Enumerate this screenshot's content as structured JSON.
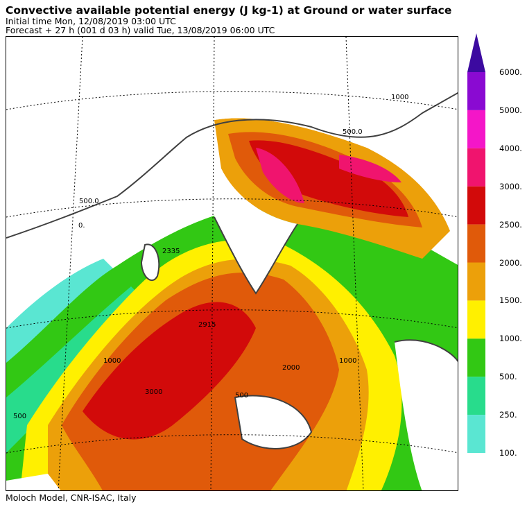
{
  "title": "Convective available potential energy (J kg-1) at Ground or water surface",
  "initial_time": "Initial time  Mon, 12/08/2019  03:00 UTC",
  "forecast": "Forecast  +  27 h  (001 d 03 h)  valid Tue, 13/08/2019 06:00 UTC",
  "footer": "Moloch Model, CNR-ISAC, Italy",
  "legend": {
    "levels": [
      "6000.",
      "5000.",
      "4000.",
      "3000.",
      "2500.",
      "2000.",
      "1500.",
      "1000.",
      "500.",
      "250.",
      "100."
    ],
    "colors": [
      "#8a0ad2",
      "#f416c8",
      "#f0146e",
      "#d20a0a",
      "#e05a0a",
      "#eca00a",
      "#fff000",
      "#32c814",
      "#28dc8c",
      "#5ae6d2"
    ],
    "top_arrow_color": "#3c0aa0"
  },
  "contour_labels": [
    "500.0",
    "0.",
    "500",
    "2335",
    "2915",
    "3000",
    "2000",
    "1000",
    "500",
    "1000",
    "500.0",
    "1000"
  ],
  "colors": {
    "sea_green": "#32c814",
    "land_white": "#ffffff",
    "coast": "#404040"
  }
}
